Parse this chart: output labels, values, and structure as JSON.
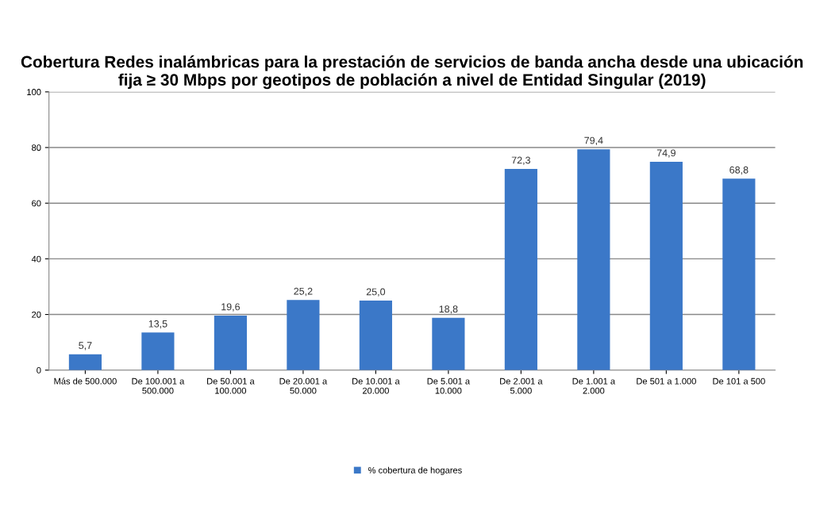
{
  "chart_data": {
    "type": "bar",
    "title": "Cobertura Redes inalámbricas para la prestación de servicios de banda ancha desde una ubicación fija ≥ 30 Mbps por geotipos de población a nivel de Entidad Singular (2019)",
    "categories": [
      "Más de 500.000",
      "De 100.001 a 500.000",
      "De 50.001 a 100.000",
      "De 20.001 a 50.000",
      "De 10.001 a 20.000",
      "De 5.001 a 10.000",
      "De 2.001 a 5.000",
      "De 1.001 a 2.000",
      "De 501 a 1.000",
      "De 101 a 500"
    ],
    "series": [
      {
        "name": "% cobertura de hogares",
        "color": "#3b78c8",
        "values": [
          5.7,
          13.5,
          19.6,
          25.2,
          25.0,
          18.8,
          72.3,
          79.4,
          74.9,
          68.8
        ],
        "value_labels": [
          "5,7",
          "13,5",
          "19,6",
          "25,2",
          "25,0",
          "18,8",
          "72,3",
          "79,4",
          "74,9",
          "68,8"
        ]
      }
    ],
    "ylim": [
      0,
      100
    ],
    "yticks": [
      0,
      20,
      40,
      60,
      80,
      100
    ],
    "grid": "y",
    "legend": "bottom"
  }
}
